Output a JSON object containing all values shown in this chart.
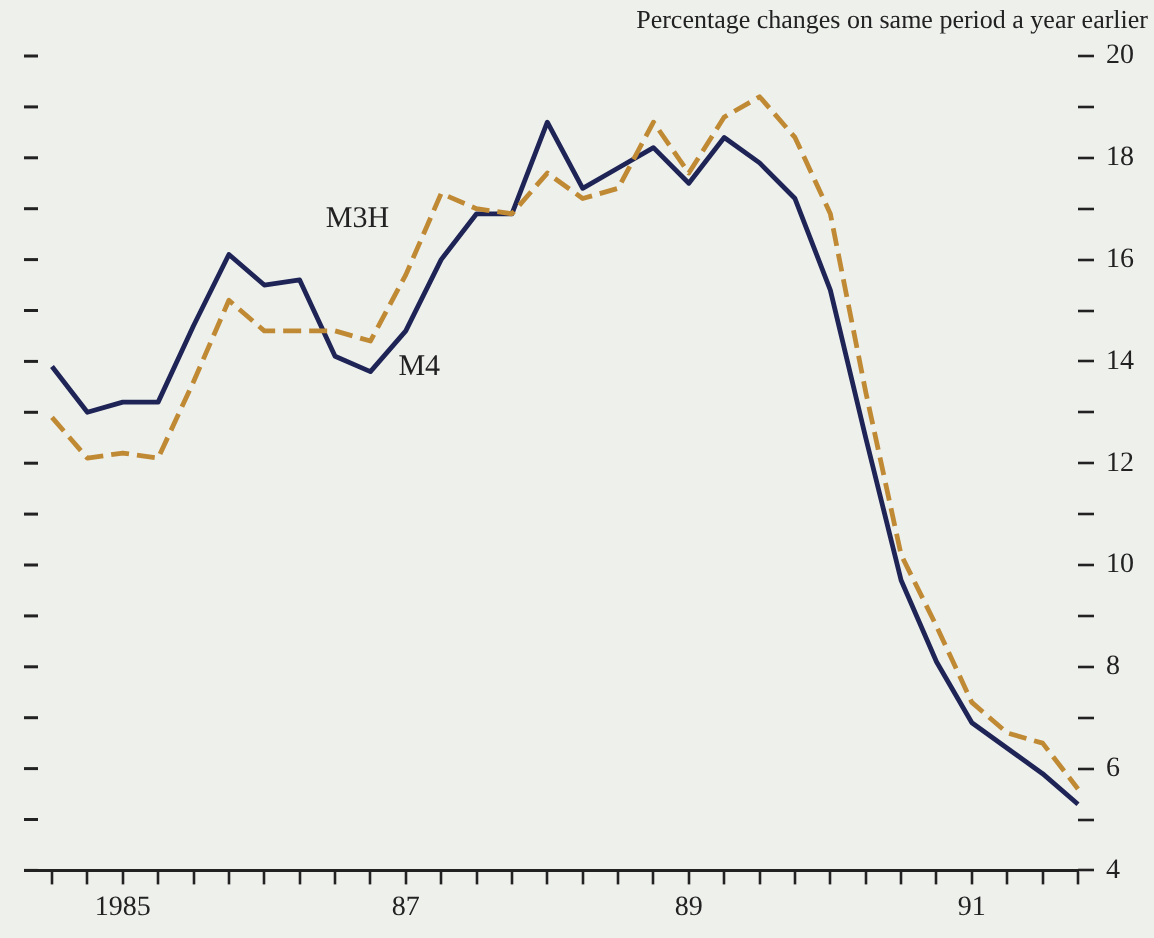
{
  "chart_data": {
    "type": "line",
    "ylabel": "Percentage changes on same period a year earlier",
    "categories": [
      null,
      null,
      "1985",
      null,
      null,
      null,
      null,
      null,
      null,
      null,
      "87",
      null,
      null,
      null,
      null,
      null,
      null,
      null,
      "89",
      null,
      null,
      null,
      null,
      null,
      null,
      null,
      "91",
      null,
      null,
      null
    ],
    "series": [
      {
        "name": "M3H",
        "color": "#c08a35",
        "line_style": "dashed",
        "values": [
          12.9,
          12.1,
          12.2,
          12.1,
          13.6,
          15.2,
          14.6,
          14.6,
          14.6,
          14.4,
          15.7,
          17.3,
          17.0,
          16.9,
          17.7,
          17.2,
          17.4,
          18.7,
          17.7,
          18.8,
          19.2,
          18.4,
          16.9,
          13.4,
          10.2,
          8.8,
          7.3,
          6.7,
          6.5,
          5.6
        ]
      },
      {
        "name": "M4",
        "color": "#1f2456",
        "line_style": "solid",
        "values": [
          13.9,
          13.0,
          13.2,
          13.2,
          14.7,
          16.1,
          15.5,
          15.6,
          14.1,
          13.8,
          14.6,
          16.0,
          16.9,
          16.9,
          18.7,
          17.4,
          17.8,
          18.2,
          17.5,
          18.4,
          17.9,
          17.2,
          15.4,
          12.5,
          9.7,
          8.1,
          6.9,
          6.4,
          5.9,
          5.3
        ]
      }
    ],
    "ylim": [
      4,
      20
    ],
    "yticks": [
      4,
      {
        "value": 5,
        "label": null
      },
      6,
      {
        "value": 7,
        "label": null
      },
      8,
      {
        "value": 9,
        "label": null
      },
      10,
      {
        "value": 11,
        "label": null
      },
      12,
      {
        "value": 13,
        "label": null
      },
      14,
      {
        "value": 15,
        "label": null
      },
      16,
      {
        "value": 17,
        "label": null
      },
      18,
      {
        "value": 19,
        "label": null
      },
      20
    ],
    "grid": false,
    "legend": false,
    "marker": "none"
  }
}
